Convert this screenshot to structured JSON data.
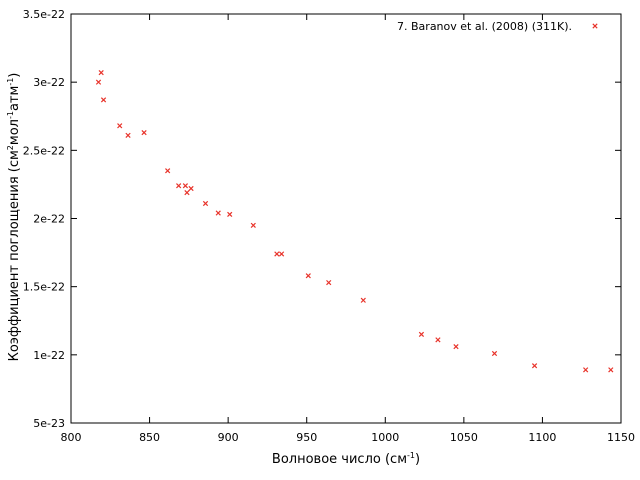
{
  "chart_data": {
    "type": "scatter",
    "title": "",
    "xlabel": "Волновое число (см",
    "xlabel_sup": "-1",
    "xlabel_end": ")",
    "ylabel_parts": [
      "Коэффициент поглощения (см",
      "2",
      "мол",
      "-1",
      "атм",
      "-1",
      ")"
    ],
    "xlim": [
      800,
      1150
    ],
    "ylim": [
      5e-23,
      3.5e-22
    ],
    "xticks": [
      800,
      850,
      900,
      950,
      1000,
      1050,
      1100,
      1150
    ],
    "yticks": [
      5e-23,
      1e-22,
      1.5e-22,
      2e-22,
      2.5e-22,
      3e-22,
      3.5e-22
    ],
    "xtick_labels": [
      "800",
      "850",
      "900",
      "950",
      "1000",
      "1050",
      "1100",
      "1150"
    ],
    "ytick_labels": [
      "5e-23",
      "1e-22",
      "1.5e-22",
      "2e-22",
      "2.5e-22",
      "3e-22",
      "3.5e-22"
    ],
    "grid": false,
    "legend_position": "top-right",
    "series": [
      {
        "name": "7. Baranov et al. (2008) (311K).",
        "color": "#e8332a",
        "marker": "x",
        "x": [
          817.5,
          819.2,
          820.7,
          831.0,
          836.3,
          846.5,
          861.5,
          868.5,
          872.8,
          873.8,
          876.4,
          885.6,
          893.7,
          901.0,
          916.0,
          931.0,
          934.0,
          951.0,
          964.0,
          986.0,
          1023.0,
          1033.5,
          1045.0,
          1069.5,
          1095.0,
          1127.5,
          1143.5
        ],
        "y": [
          3e-22,
          3.07e-22,
          2.87e-22,
          2.68e-22,
          2.61e-22,
          2.63e-22,
          2.35e-22,
          2.24e-22,
          2.24e-22,
          2.19e-22,
          2.22e-22,
          2.11e-22,
          2.04e-22,
          2.03e-22,
          1.95e-22,
          1.74e-22,
          1.74e-22,
          1.58e-22,
          1.53e-22,
          1.4e-22,
          1.15e-22,
          1.11e-22,
          1.06e-22,
          1.01e-22,
          9.2e-23,
          8.9e-23,
          8.9e-23
        ]
      }
    ]
  }
}
